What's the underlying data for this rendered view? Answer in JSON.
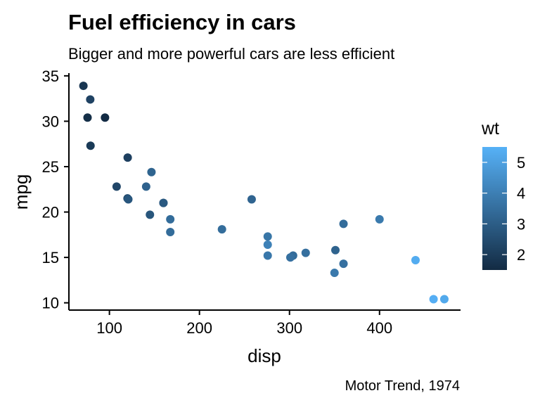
{
  "chart_data": {
    "type": "scatter",
    "title": "Fuel efficiency in cars",
    "subtitle": "Bigger and more powerful cars are less efficient",
    "caption": "Motor Trend, 1974",
    "xlabel": "disp",
    "ylabel": "mpg",
    "xlim": [
      55,
      490
    ],
    "ylim": [
      9.2,
      35.3
    ],
    "xticks": [
      100,
      200,
      300,
      400
    ],
    "yticks": [
      10,
      15,
      20,
      25,
      30,
      35
    ],
    "grid": false,
    "color_legend": {
      "title": "wt",
      "min": 1.5,
      "max": 5.5,
      "ticks": [
        2,
        3,
        4,
        5
      ],
      "low_color": "#132b43",
      "high_color": "#56b1f7"
    },
    "points": [
      {
        "x": 160,
        "y": 21.0,
        "wt": 2.62
      },
      {
        "x": 160,
        "y": 21.0,
        "wt": 2.875
      },
      {
        "x": 108,
        "y": 22.8,
        "wt": 2.32
      },
      {
        "x": 258,
        "y": 21.4,
        "wt": 3.215
      },
      {
        "x": 360,
        "y": 18.7,
        "wt": 3.44
      },
      {
        "x": 225,
        "y": 18.1,
        "wt": 3.46
      },
      {
        "x": 360,
        "y": 14.3,
        "wt": 3.57
      },
      {
        "x": 146.7,
        "y": 24.4,
        "wt": 3.19
      },
      {
        "x": 140.8,
        "y": 22.8,
        "wt": 3.15
      },
      {
        "x": 167.6,
        "y": 19.2,
        "wt": 3.44
      },
      {
        "x": 167.6,
        "y": 17.8,
        "wt": 3.44
      },
      {
        "x": 275.8,
        "y": 16.4,
        "wt": 4.07
      },
      {
        "x": 275.8,
        "y": 17.3,
        "wt": 3.73
      },
      {
        "x": 275.8,
        "y": 15.2,
        "wt": 3.78
      },
      {
        "x": 472,
        "y": 10.4,
        "wt": 5.25
      },
      {
        "x": 460,
        "y": 10.4,
        "wt": 5.424
      },
      {
        "x": 440,
        "y": 14.7,
        "wt": 5.345
      },
      {
        "x": 78.7,
        "y": 32.4,
        "wt": 2.2
      },
      {
        "x": 75.7,
        "y": 30.4,
        "wt": 1.615
      },
      {
        "x": 71.1,
        "y": 33.9,
        "wt": 1.835
      },
      {
        "x": 120.1,
        "y": 21.5,
        "wt": 2.465
      },
      {
        "x": 318,
        "y": 15.5,
        "wt": 3.52
      },
      {
        "x": 304,
        "y": 15.2,
        "wt": 3.435
      },
      {
        "x": 350,
        "y": 13.3,
        "wt": 3.84
      },
      {
        "x": 400,
        "y": 19.2,
        "wt": 3.845
      },
      {
        "x": 79,
        "y": 27.3,
        "wt": 1.935
      },
      {
        "x": 120.3,
        "y": 26.0,
        "wt": 2.14
      },
      {
        "x": 95.1,
        "y": 30.4,
        "wt": 1.513
      },
      {
        "x": 351,
        "y": 15.8,
        "wt": 3.17
      },
      {
        "x": 145,
        "y": 19.7,
        "wt": 2.77
      },
      {
        "x": 301,
        "y": 15.0,
        "wt": 3.57
      },
      {
        "x": 121,
        "y": 21.4,
        "wt": 2.78
      }
    ]
  }
}
